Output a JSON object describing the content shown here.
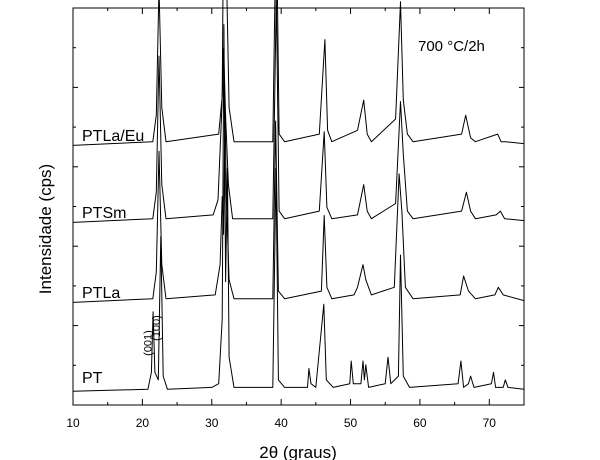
{
  "chart_data": {
    "type": "line",
    "title": "",
    "annotation": "700 °C/2h",
    "xlabel": "2θ (graus)",
    "ylabel": "Intensidade (cps)",
    "xlim": [
      10,
      75
    ],
    "x_ticks": [
      10,
      20,
      30,
      40,
      50,
      60,
      70
    ],
    "y_ticks_labeled": false,
    "grid": false,
    "legend": "none",
    "peak_labels": [
      {
        "text": "(001)",
        "x": 21.6
      },
      {
        "text": "(100)",
        "x": 22.8
      }
    ],
    "series": [
      {
        "name": "PT",
        "points": [
          [
            10,
            0.01
          ],
          [
            20.8,
            0.015
          ],
          [
            21.3,
            0.06
          ],
          [
            21.55,
            0.22
          ],
          [
            21.8,
            0.06
          ],
          [
            22.3,
            0.04
          ],
          [
            22.65,
            0.42
          ],
          [
            23.0,
            0.05
          ],
          [
            23.6,
            0.015
          ],
          [
            30.0,
            0.02
          ],
          [
            31.0,
            0.03
          ],
          [
            31.5,
            0.2
          ],
          [
            31.75,
            0.98
          ],
          [
            32.0,
            0.3
          ],
          [
            32.25,
            0.6
          ],
          [
            32.5,
            0.1
          ],
          [
            33.2,
            0.02
          ],
          [
            38.8,
            0.02
          ],
          [
            39.25,
            0.6
          ],
          [
            39.6,
            0.04
          ],
          [
            40.5,
            0.02
          ],
          [
            43.8,
            0.02
          ],
          [
            44.0,
            0.07
          ],
          [
            44.3,
            0.03
          ],
          [
            45.0,
            0.02
          ],
          [
            46.15,
            0.24
          ],
          [
            46.5,
            0.04
          ],
          [
            47.5,
            0.02
          ],
          [
            49.9,
            0.03
          ],
          [
            50.1,
            0.09
          ],
          [
            50.4,
            0.03
          ],
          [
            51.5,
            0.03
          ],
          [
            51.8,
            0.09
          ],
          [
            52.0,
            0.04
          ],
          [
            52.2,
            0.08
          ],
          [
            52.6,
            0.02
          ],
          [
            55.0,
            0.03
          ],
          [
            55.4,
            0.1
          ],
          [
            55.8,
            0.03
          ],
          [
            56.9,
            0.05
          ],
          [
            57.2,
            0.37
          ],
          [
            57.6,
            0.05
          ],
          [
            58.5,
            0.02
          ],
          [
            65.5,
            0.03
          ],
          [
            65.9,
            0.09
          ],
          [
            66.3,
            0.02
          ],
          [
            67.0,
            0.03
          ],
          [
            67.3,
            0.05
          ],
          [
            67.8,
            0.02
          ],
          [
            70.3,
            0.03
          ],
          [
            70.6,
            0.06
          ],
          [
            70.9,
            0.02
          ],
          [
            72.0,
            0.02
          ],
          [
            72.3,
            0.04
          ],
          [
            72.7,
            0.02
          ],
          [
            75,
            0.015
          ]
        ]
      },
      {
        "name": "PTLa",
        "points": [
          [
            10,
            0.02
          ],
          [
            21.5,
            0.03
          ],
          [
            22.0,
            0.1
          ],
          [
            22.4,
            0.42
          ],
          [
            22.8,
            0.12
          ],
          [
            23.4,
            0.03
          ],
          [
            30.5,
            0.04
          ],
          [
            31.2,
            0.12
          ],
          [
            31.5,
            0.3
          ],
          [
            31.7,
            0.2
          ],
          [
            31.9,
            0.55
          ],
          [
            32.1,
            0.3
          ],
          [
            32.5,
            0.08
          ],
          [
            33.2,
            0.03
          ],
          [
            38.8,
            0.03
          ],
          [
            39.2,
            0.5
          ],
          [
            39.6,
            0.05
          ],
          [
            40.5,
            0.03
          ],
          [
            45.8,
            0.05
          ],
          [
            46.2,
            0.25
          ],
          [
            46.6,
            0.06
          ],
          [
            47.3,
            0.03
          ],
          [
            50.5,
            0.04
          ],
          [
            51.0,
            0.06
          ],
          [
            51.8,
            0.12
          ],
          [
            52.2,
            0.08
          ],
          [
            53.0,
            0.04
          ],
          [
            56.3,
            0.06
          ],
          [
            57.0,
            0.36
          ],
          [
            57.4,
            0.26
          ],
          [
            57.9,
            0.06
          ],
          [
            59.0,
            0.03
          ],
          [
            65.8,
            0.04
          ],
          [
            66.3,
            0.09
          ],
          [
            67.0,
            0.05
          ],
          [
            68.0,
            0.03
          ],
          [
            70.8,
            0.04
          ],
          [
            71.3,
            0.06
          ],
          [
            72.0,
            0.04
          ],
          [
            75,
            0.025
          ]
        ]
      },
      {
        "name": "PTSm",
        "points": [
          [
            10,
            0.02
          ],
          [
            21.5,
            0.03
          ],
          [
            22.0,
            0.1
          ],
          [
            22.4,
            0.46
          ],
          [
            22.8,
            0.12
          ],
          [
            23.4,
            0.03
          ],
          [
            30.2,
            0.04
          ],
          [
            30.9,
            0.08
          ],
          [
            31.4,
            0.3
          ],
          [
            31.7,
            0.48
          ],
          [
            32.0,
            0.3
          ],
          [
            32.4,
            0.12
          ],
          [
            33.0,
            0.03
          ],
          [
            38.8,
            0.03
          ],
          [
            39.3,
            0.62
          ],
          [
            39.7,
            0.05
          ],
          [
            40.5,
            0.03
          ],
          [
            45.5,
            0.05
          ],
          [
            46.2,
            0.26
          ],
          [
            46.6,
            0.06
          ],
          [
            47.3,
            0.03
          ],
          [
            51.0,
            0.04
          ],
          [
            51.9,
            0.12
          ],
          [
            52.4,
            0.05
          ],
          [
            53.0,
            0.03
          ],
          [
            56.5,
            0.07
          ],
          [
            57.2,
            0.34
          ],
          [
            57.6,
            0.2
          ],
          [
            58.2,
            0.05
          ],
          [
            59.0,
            0.03
          ],
          [
            66.0,
            0.05
          ],
          [
            66.7,
            0.1
          ],
          [
            67.3,
            0.05
          ],
          [
            68.0,
            0.03
          ],
          [
            71.0,
            0.04
          ],
          [
            71.6,
            0.05
          ],
          [
            72.2,
            0.03
          ],
          [
            75,
            0.025
          ]
        ]
      },
      {
        "name": "PTLa/Eu",
        "points": [
          [
            10,
            0.02
          ],
          [
            21.5,
            0.03
          ],
          [
            22.0,
            0.1
          ],
          [
            22.4,
            0.44
          ],
          [
            22.8,
            0.12
          ],
          [
            23.4,
            0.03
          ],
          [
            31.0,
            0.05
          ],
          [
            31.5,
            0.15
          ],
          [
            31.85,
            1.0
          ],
          [
            32.1,
            0.5
          ],
          [
            32.5,
            0.12
          ],
          [
            33.2,
            0.03
          ],
          [
            38.8,
            0.03
          ],
          [
            39.3,
            0.66
          ],
          [
            39.7,
            0.05
          ],
          [
            40.5,
            0.03
          ],
          [
            45.5,
            0.05
          ],
          [
            46.3,
            0.3
          ],
          [
            46.7,
            0.06
          ],
          [
            47.3,
            0.03
          ],
          [
            51.0,
            0.06
          ],
          [
            51.9,
            0.14
          ],
          [
            52.4,
            0.05
          ],
          [
            53.0,
            0.03
          ],
          [
            56.5,
            0.09
          ],
          [
            57.2,
            0.4
          ],
          [
            57.6,
            0.14
          ],
          [
            58.2,
            0.05
          ],
          [
            59.0,
            0.03
          ],
          [
            66.0,
            0.05
          ],
          [
            66.6,
            0.1
          ],
          [
            67.3,
            0.04
          ],
          [
            68.0,
            0.03
          ],
          [
            71.2,
            0.05
          ],
          [
            71.7,
            0.03
          ],
          [
            72.3,
            0.03
          ],
          [
            75,
            0.025
          ]
        ]
      }
    ]
  }
}
